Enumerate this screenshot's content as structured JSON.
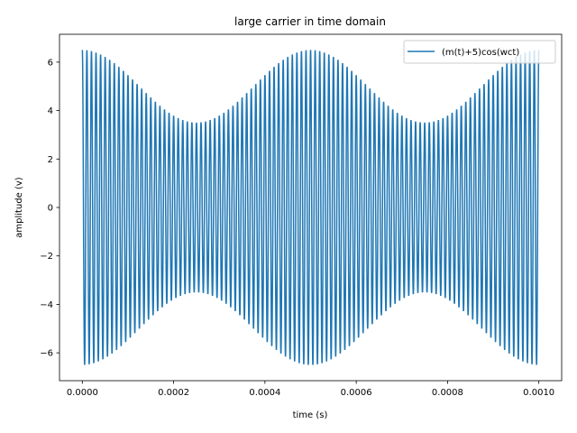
{
  "chart_data": {
    "type": "line",
    "title": "large carrier in time domain",
    "xlabel": "time (s)",
    "ylabel": "amplitude (v)",
    "xlim": [
      -5e-05,
      0.00105
    ],
    "ylim": [
      -7.15,
      7.15
    ],
    "x_ticks": [
      0.0,
      0.0002,
      0.0004,
      0.0006,
      0.0008,
      0.001
    ],
    "x_tick_labels": [
      "0.0000",
      "0.0002",
      "0.0004",
      "0.0006",
      "0.0008",
      "0.0010"
    ],
    "y_ticks": [
      -6,
      -4,
      -2,
      0,
      2,
      4,
      6
    ],
    "y_tick_labels": [
      "−6",
      "−4",
      "−2",
      "0",
      "2",
      "4",
      "6"
    ],
    "grid": false,
    "legend_position": "top-right",
    "series": [
      {
        "name": "(m(t)+5)cos(wct)",
        "color": "#1f77b4",
        "x_start": 0.0,
        "x_end": 0.001,
        "carrier_frequency_hz": 100000,
        "message_frequency_hz": 2000,
        "dc_offset": 5,
        "message_amplitude": 1.5,
        "envelope_peaks": [
          {
            "x": 0.0,
            "y": 6.5
          },
          {
            "x": 0.0005,
            "y": 6.5
          },
          {
            "x": 0.001,
            "y": 6.5
          }
        ],
        "envelope_troughs": [
          {
            "x": 0.00025,
            "y": 3.5
          },
          {
            "x": 0.00075,
            "y": 3.5
          }
        ]
      }
    ]
  }
}
